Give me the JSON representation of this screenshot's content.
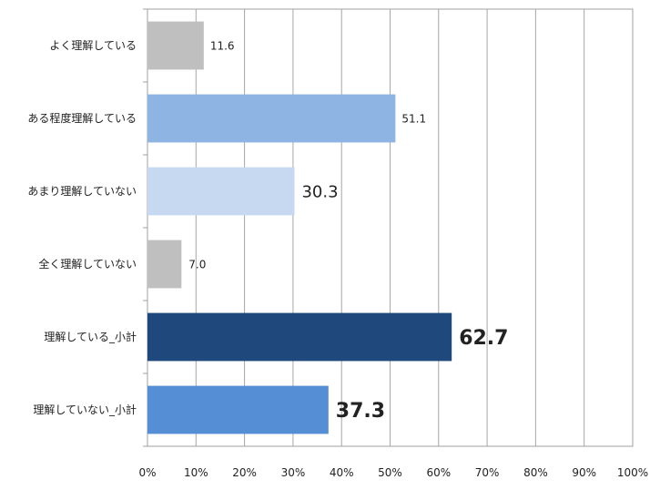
{
  "chart_data": {
    "type": "bar",
    "orientation": "horizontal",
    "categories": [
      "よく理解している",
      "ある程度理解している",
      "あまり理解していない",
      "全く理解していない",
      "理解している_小計",
      "理解していない_小計"
    ],
    "values": [
      11.6,
      51.1,
      30.3,
      7.0,
      62.7,
      37.3
    ],
    "value_labels": [
      "11.6",
      "51.1",
      "30.3",
      "7.0",
      "62.7",
      "37.3"
    ],
    "colors": [
      "#bfbfbf",
      "#8eb4e3",
      "#c6d9f1",
      "#bfbfbf",
      "#1f497d",
      "#558ed5"
    ],
    "xlim": [
      0,
      100
    ],
    "x_ticks": [
      0,
      10,
      20,
      30,
      40,
      50,
      60,
      70,
      80,
      90,
      100
    ],
    "x_tick_labels": [
      "0%",
      "10%",
      "20%",
      "30%",
      "40%",
      "50%",
      "60%",
      "70%",
      "80%",
      "90%",
      "100%"
    ],
    "grid": true,
    "title": "",
    "xlabel": "",
    "ylabel": ""
  }
}
